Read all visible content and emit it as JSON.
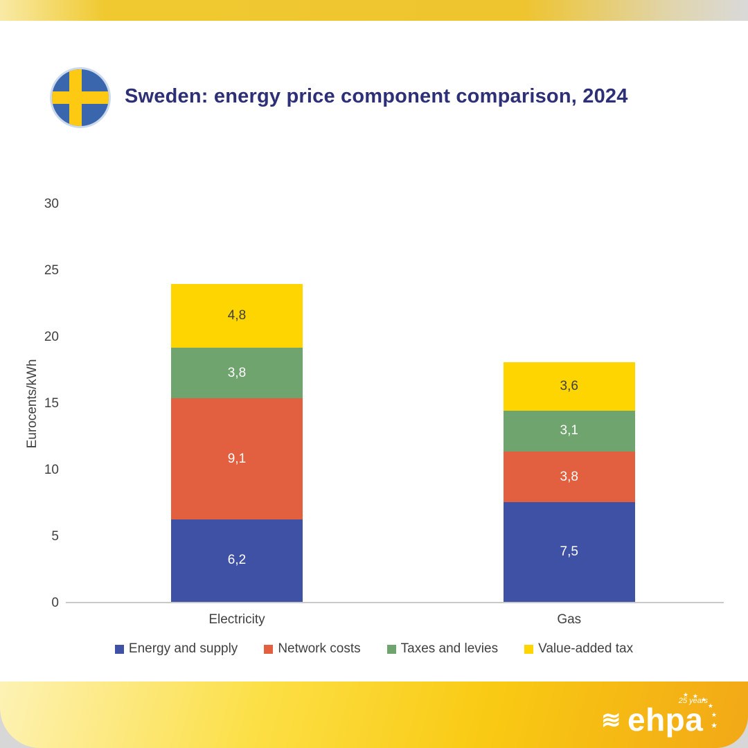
{
  "header": {
    "title": "Sweden: energy price component comparison, 2024",
    "flag": "sweden-flag-icon"
  },
  "chart_data": {
    "type": "bar",
    "stacked": true,
    "title": "Sweden: energy price component comparison, 2024",
    "categories": [
      "Electricity",
      "Gas"
    ],
    "series": [
      {
        "name": "Energy and supply",
        "color": "#3f51a5",
        "label_color": "#ffffff",
        "values": [
          6.2,
          7.5
        ],
        "labels": [
          "6,2",
          "7,5"
        ]
      },
      {
        "name": "Network costs",
        "color": "#e2603f",
        "label_color": "#ffffff",
        "values": [
          9.1,
          3.8
        ],
        "labels": [
          "9,1",
          "3,8"
        ]
      },
      {
        "name": "Taxes and levies",
        "color": "#6fa46f",
        "label_color": "#ffffff",
        "values": [
          3.8,
          3.1
        ],
        "labels": [
          "3,8",
          "3,1"
        ]
      },
      {
        "name": "Value-added tax",
        "color": "#ffd500",
        "label_color": "#3f3f3f",
        "values": [
          4.8,
          3.6
        ],
        "labels": [
          "4,8",
          "3,6"
        ]
      }
    ],
    "xlabel": "",
    "ylabel": "Eurocents/kWh",
    "ylim": [
      0,
      30
    ],
    "yticks": [
      0,
      5,
      10,
      15,
      20,
      25,
      30
    ],
    "bar_centers": [
      0.26,
      0.765
    ],
    "grid": false,
    "legend_position": "bottom"
  },
  "footer": {
    "logo_text": "ehpa",
    "anniversary": "25 years",
    "wave_glyph": "≋",
    "star_glyph": "★"
  }
}
